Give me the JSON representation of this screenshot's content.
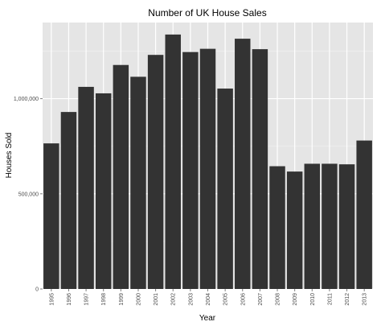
{
  "chart_data": {
    "type": "bar",
    "title": "Number of UK House Sales",
    "xlabel": "Year",
    "ylabel": "Houses Sold",
    "categories": [
      "1995",
      "1996",
      "1997",
      "1998",
      "1999",
      "2000",
      "2001",
      "2002",
      "2003",
      "2004",
      "2005",
      "2006",
      "2007",
      "2008",
      "2009",
      "2010",
      "2011",
      "2012",
      "2013"
    ],
    "values": [
      765000,
      930000,
      1062000,
      1028000,
      1177000,
      1115000,
      1230000,
      1337000,
      1245000,
      1262000,
      1053000,
      1315000,
      1260000,
      645000,
      617000,
      658000,
      658000,
      655000,
      780000
    ],
    "ylim": [
      0,
      1400000
    ],
    "yticks": [
      0,
      500000,
      1000000
    ],
    "ytick_labels": [
      "0",
      "500,000",
      "1,000,000"
    ],
    "grid": true,
    "colors": {
      "bar": "#333333",
      "panel_bg": "#e5e5e5",
      "grid_major": "#ffffff",
      "grid_minor": "#f2f2f2",
      "tick": "#7f7f7f"
    }
  }
}
